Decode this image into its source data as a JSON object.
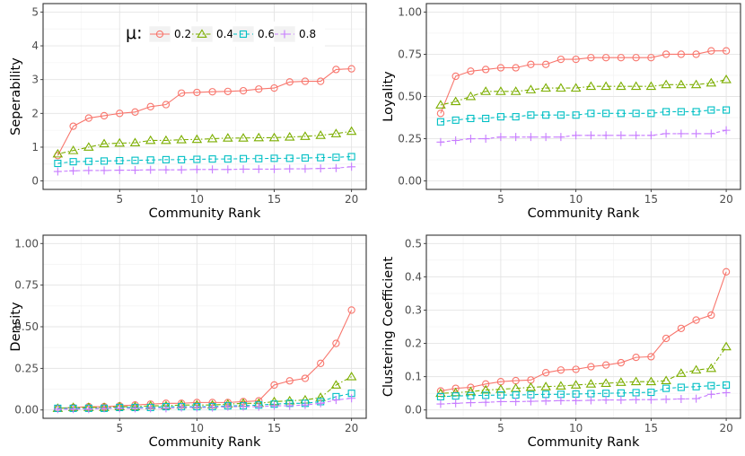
{
  "legend": {
    "title": "μ:",
    "position": "top",
    "entries": [
      {
        "label": "0.2",
        "color": "#F8766D",
        "marker": "circle",
        "line": "solid"
      },
      {
        "label": "0.4",
        "color": "#7CAE00",
        "marker": "triangle",
        "line": "dotdash"
      },
      {
        "label": "0.6",
        "color": "#00BFC4",
        "marker": "square",
        "line": "dashed"
      },
      {
        "label": "0.8",
        "color": "#C77CFF",
        "marker": "plus",
        "line": "dashed"
      }
    ]
  },
  "chart_data": [
    {
      "type": "line",
      "title": "",
      "xlabel": "Community Rank",
      "ylabel": "Seperability",
      "xlim": [
        0.05,
        20.95
      ],
      "ylim": [
        -0.25,
        5.25
      ],
      "xticks": [
        5,
        10,
        15,
        20
      ],
      "yticks": [
        0,
        1,
        2,
        3,
        4,
        5
      ],
      "ytick_labels": [
        "0",
        "1",
        "2",
        "3",
        "4",
        "5"
      ],
      "x": [
        1,
        2,
        3,
        4,
        5,
        6,
        7,
        8,
        9,
        10,
        11,
        12,
        13,
        14,
        15,
        16,
        17,
        18,
        19,
        20
      ],
      "series": [
        {
          "name": "0.2",
          "values": [
            0.75,
            1.62,
            1.86,
            1.93,
            2.0,
            2.04,
            2.2,
            2.26,
            2.6,
            2.62,
            2.64,
            2.65,
            2.67,
            2.72,
            2.75,
            2.93,
            2.95,
            2.95,
            3.3,
            3.32
          ]
        },
        {
          "name": "0.4",
          "values": [
            0.8,
            0.9,
            1.0,
            1.1,
            1.12,
            1.13,
            1.2,
            1.2,
            1.22,
            1.23,
            1.25,
            1.27,
            1.27,
            1.28,
            1.28,
            1.3,
            1.32,
            1.35,
            1.4,
            1.47
          ]
        },
        {
          "name": "0.6",
          "values": [
            0.52,
            0.57,
            0.58,
            0.59,
            0.6,
            0.61,
            0.62,
            0.63,
            0.63,
            0.64,
            0.65,
            0.65,
            0.66,
            0.66,
            0.67,
            0.67,
            0.68,
            0.69,
            0.7,
            0.72
          ]
        },
        {
          "name": "0.8",
          "values": [
            0.28,
            0.3,
            0.31,
            0.31,
            0.32,
            0.32,
            0.33,
            0.33,
            0.33,
            0.34,
            0.34,
            0.34,
            0.35,
            0.35,
            0.35,
            0.36,
            0.36,
            0.37,
            0.38,
            0.42
          ]
        }
      ]
    },
    {
      "type": "line",
      "title": "",
      "xlabel": "Community Rank",
      "ylabel": "Loyality",
      "xlim": [
        0.05,
        20.95
      ],
      "ylim": [
        -0.05,
        1.05
      ],
      "xticks": [
        5,
        10,
        15,
        20
      ],
      "yticks": [
        0,
        0.25,
        0.5,
        0.75,
        1.0
      ],
      "ytick_labels": [
        "0.00",
        "0.25",
        "0.50",
        "0.75",
        "1.00"
      ],
      "x": [
        1,
        2,
        3,
        4,
        5,
        6,
        7,
        8,
        9,
        10,
        11,
        12,
        13,
        14,
        15,
        16,
        17,
        18,
        19,
        20
      ],
      "series": [
        {
          "name": "0.2",
          "values": [
            0.4,
            0.62,
            0.65,
            0.66,
            0.67,
            0.67,
            0.69,
            0.69,
            0.72,
            0.72,
            0.73,
            0.73,
            0.73,
            0.73,
            0.73,
            0.75,
            0.75,
            0.75,
            0.77,
            0.77
          ]
        },
        {
          "name": "0.4",
          "values": [
            0.45,
            0.47,
            0.5,
            0.53,
            0.53,
            0.53,
            0.54,
            0.55,
            0.55,
            0.55,
            0.56,
            0.56,
            0.56,
            0.56,
            0.56,
            0.57,
            0.57,
            0.57,
            0.58,
            0.6
          ]
        },
        {
          "name": "0.6",
          "values": [
            0.35,
            0.36,
            0.37,
            0.37,
            0.38,
            0.38,
            0.39,
            0.39,
            0.39,
            0.39,
            0.4,
            0.4,
            0.4,
            0.4,
            0.4,
            0.41,
            0.41,
            0.41,
            0.42,
            0.42
          ]
        },
        {
          "name": "0.8",
          "values": [
            0.23,
            0.24,
            0.25,
            0.25,
            0.26,
            0.26,
            0.26,
            0.26,
            0.26,
            0.27,
            0.27,
            0.27,
            0.27,
            0.27,
            0.27,
            0.28,
            0.28,
            0.28,
            0.28,
            0.3
          ]
        }
      ]
    },
    {
      "type": "line",
      "title": "",
      "xlabel": "Community Rank",
      "ylabel": "Density",
      "xlim": [
        0.05,
        20.95
      ],
      "ylim": [
        -0.05,
        1.05
      ],
      "xticks": [
        5,
        10,
        15,
        20
      ],
      "yticks": [
        0,
        0.25,
        0.5,
        0.75,
        1.0
      ],
      "ytick_labels": [
        "0.00",
        "0.25",
        "0.50",
        "0.75",
        "1.00"
      ],
      "x": [
        1,
        2,
        3,
        4,
        5,
        6,
        7,
        8,
        9,
        10,
        11,
        12,
        13,
        14,
        15,
        16,
        17,
        18,
        19,
        20
      ],
      "series": [
        {
          "name": "0.2",
          "values": [
            0.01,
            0.015,
            0.02,
            0.02,
            0.025,
            0.03,
            0.035,
            0.04,
            0.04,
            0.045,
            0.045,
            0.045,
            0.05,
            0.055,
            0.15,
            0.175,
            0.19,
            0.28,
            0.4,
            0.6
          ]
        },
        {
          "name": "0.4",
          "values": [
            0.01,
            0.015,
            0.015,
            0.015,
            0.02,
            0.02,
            0.025,
            0.025,
            0.03,
            0.03,
            0.03,
            0.035,
            0.04,
            0.04,
            0.05,
            0.055,
            0.06,
            0.075,
            0.15,
            0.2
          ]
        },
        {
          "name": "0.6",
          "values": [
            0.01,
            0.01,
            0.01,
            0.01,
            0.015,
            0.015,
            0.015,
            0.02,
            0.02,
            0.02,
            0.02,
            0.025,
            0.025,
            0.03,
            0.035,
            0.04,
            0.04,
            0.05,
            0.08,
            0.1
          ]
        },
        {
          "name": "0.8",
          "values": [
            0.005,
            0.005,
            0.005,
            0.01,
            0.01,
            0.01,
            0.01,
            0.01,
            0.015,
            0.015,
            0.015,
            0.02,
            0.02,
            0.02,
            0.025,
            0.025,
            0.03,
            0.04,
            0.06,
            0.07
          ]
        }
      ]
    },
    {
      "type": "line",
      "title": "",
      "xlabel": "Community Rank",
      "ylabel": "Clustering Coefficient",
      "xlim": [
        0.05,
        20.95
      ],
      "ylim": [
        -0.025,
        0.525
      ],
      "xticks": [
        5,
        10,
        15,
        20
      ],
      "yticks": [
        0,
        0.1,
        0.2,
        0.3,
        0.4,
        0.5
      ],
      "ytick_labels": [
        "0.0",
        "0.1",
        "0.2",
        "0.3",
        "0.4",
        "0.5"
      ],
      "x": [
        1,
        2,
        3,
        4,
        5,
        6,
        7,
        8,
        9,
        10,
        11,
        12,
        13,
        14,
        15,
        16,
        17,
        18,
        19,
        20
      ],
      "series": [
        {
          "name": "0.2",
          "values": [
            0.057,
            0.065,
            0.068,
            0.078,
            0.085,
            0.088,
            0.09,
            0.112,
            0.12,
            0.122,
            0.13,
            0.135,
            0.142,
            0.158,
            0.16,
            0.215,
            0.245,
            0.27,
            0.285,
            0.415
          ]
        },
        {
          "name": "0.4",
          "values": [
            0.05,
            0.052,
            0.055,
            0.06,
            0.062,
            0.065,
            0.068,
            0.07,
            0.072,
            0.075,
            0.078,
            0.08,
            0.083,
            0.085,
            0.085,
            0.088,
            0.11,
            0.12,
            0.125,
            0.19
          ]
        },
        {
          "name": "0.6",
          "values": [
            0.04,
            0.042,
            0.043,
            0.044,
            0.045,
            0.045,
            0.046,
            0.047,
            0.047,
            0.048,
            0.049,
            0.05,
            0.051,
            0.052,
            0.053,
            0.065,
            0.068,
            0.07,
            0.073,
            0.075
          ]
        },
        {
          "name": "0.8",
          "values": [
            0.018,
            0.02,
            0.022,
            0.023,
            0.025,
            0.025,
            0.026,
            0.027,
            0.028,
            0.028,
            0.029,
            0.03,
            0.03,
            0.031,
            0.031,
            0.032,
            0.033,
            0.034,
            0.047,
            0.052
          ]
        }
      ]
    }
  ]
}
